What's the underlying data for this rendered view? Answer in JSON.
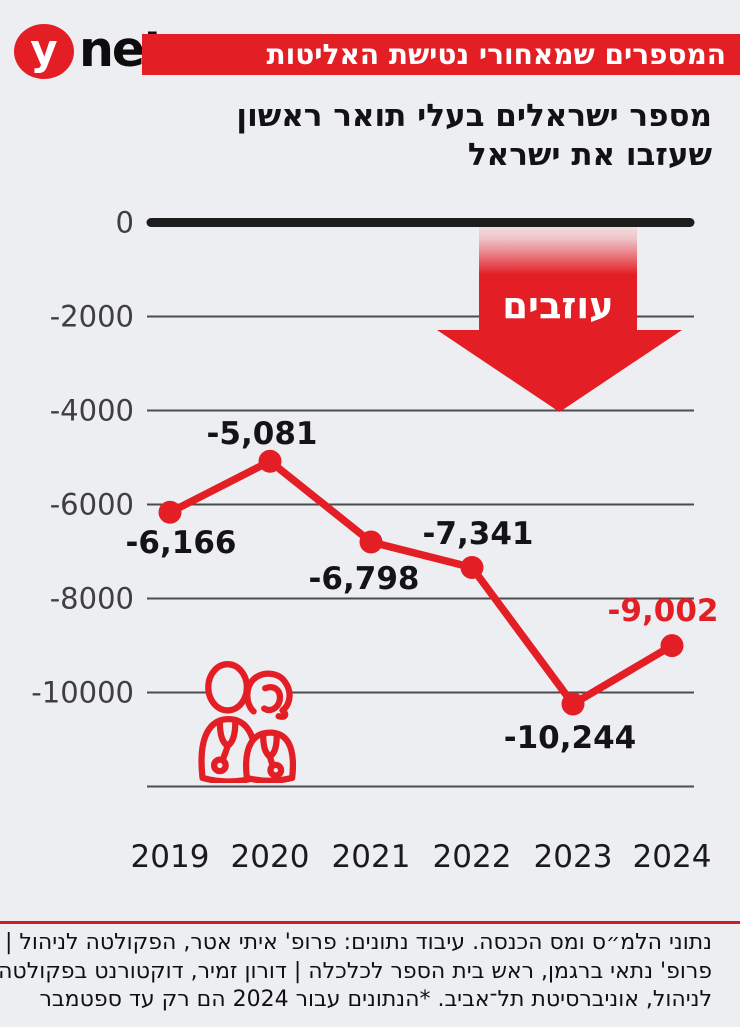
{
  "header": {
    "logo": {
      "y": "y",
      "net": "net"
    },
    "banner": "המספרים שמאחורי נטישת האליטות"
  },
  "title": {
    "line1": "מספר ישראלים בעלי תואר ראשון",
    "line2": "שעזבו את ישראל"
  },
  "chart_data": {
    "type": "line",
    "title": "מספר ישראלים בעלי תואר ראשון שעזבו את ישראל",
    "categories": [
      "2019",
      "2020",
      "2021",
      "2022",
      "2023",
      "2024"
    ],
    "values": [
      -6166,
      -5081,
      -6798,
      -7341,
      -10244,
      -9002
    ],
    "labels": [
      "-6,166",
      "-5,081",
      "-6,798",
      "-7,341",
      "-10,244",
      "-9,002"
    ],
    "y_ticks": [
      0,
      -2000,
      -4000,
      -6000,
      -8000,
      -10000
    ],
    "y_tick_labels": [
      "0",
      "-2000",
      "-4000",
      "-6000",
      "-8000",
      "-10000"
    ],
    "ylim": [
      -12000,
      0
    ],
    "grid": true,
    "legend": false,
    "annotation": "עוזבים",
    "highlight_last_label": true
  },
  "footer": {
    "line1": "נתוני הלמ״ס ומס הכנסה. עיבוד נתונים: פרופ' איתי אטר, הפקולטה לניהול |",
    "line2": "פרופ' נתאי ברגמן, ראש בית הספר לכלכלה | דורון זמיר, דוקטורנט בפקולטה",
    "line3": "לניהול, אוניברסיטת תל־אביב. *הנתונים עבור 2024 הם רק עד ספטמבר"
  },
  "colors": {
    "background": "#edeef2",
    "accent": "#e31e25",
    "text": "#141414",
    "grid": "#4c4c4c",
    "zero_line": "#1d1d1d",
    "banner_bg": "#e31e25",
    "banner_text": "#ffffff",
    "arrow_text": "#ffffff"
  }
}
